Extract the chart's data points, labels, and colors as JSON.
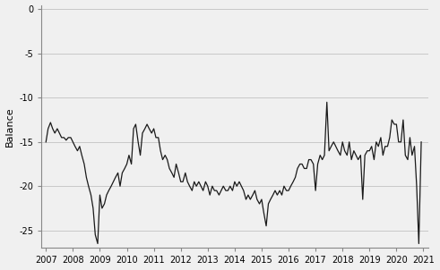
{
  "title": "",
  "ylabel": "Balance",
  "xlim_start": 2006.83,
  "xlim_end": 2021.17,
  "ylim": [
    -27.0,
    0.5
  ],
  "yticks": [
    0,
    -5,
    -10,
    -15,
    -20,
    -25
  ],
  "xticks": [
    2007,
    2008,
    2009,
    2010,
    2011,
    2012,
    2013,
    2014,
    2015,
    2016,
    2017,
    2018,
    2019,
    2020,
    2021
  ],
  "line_color": "#1a1a1a",
  "background_color": "#f0f0f0",
  "grid_color": "#c8c8c8",
  "series": [
    [
      2007.0,
      -15.0
    ],
    [
      2007.08,
      -13.5
    ],
    [
      2007.17,
      -12.8
    ],
    [
      2007.25,
      -13.5
    ],
    [
      2007.33,
      -14.0
    ],
    [
      2007.42,
      -13.5
    ],
    [
      2007.5,
      -14.0
    ],
    [
      2007.58,
      -14.5
    ],
    [
      2007.67,
      -14.5
    ],
    [
      2007.75,
      -14.8
    ],
    [
      2007.83,
      -14.5
    ],
    [
      2007.92,
      -14.5
    ],
    [
      2008.0,
      -15.0
    ],
    [
      2008.08,
      -15.5
    ],
    [
      2008.17,
      -16.0
    ],
    [
      2008.25,
      -15.5
    ],
    [
      2008.33,
      -16.5
    ],
    [
      2008.42,
      -17.5
    ],
    [
      2008.5,
      -19.0
    ],
    [
      2008.58,
      -20.0
    ],
    [
      2008.67,
      -21.0
    ],
    [
      2008.75,
      -22.5
    ],
    [
      2008.83,
      -25.5
    ],
    [
      2008.92,
      -26.5
    ],
    [
      2009.0,
      -21.0
    ],
    [
      2009.08,
      -22.5
    ],
    [
      2009.17,
      -22.0
    ],
    [
      2009.25,
      -21.0
    ],
    [
      2009.33,
      -20.5
    ],
    [
      2009.42,
      -20.0
    ],
    [
      2009.5,
      -19.5
    ],
    [
      2009.58,
      -19.0
    ],
    [
      2009.67,
      -18.5
    ],
    [
      2009.75,
      -20.0
    ],
    [
      2009.83,
      -18.5
    ],
    [
      2009.92,
      -18.0
    ],
    [
      2010.0,
      -17.5
    ],
    [
      2010.08,
      -16.5
    ],
    [
      2010.17,
      -17.5
    ],
    [
      2010.25,
      -13.5
    ],
    [
      2010.33,
      -13.0
    ],
    [
      2010.42,
      -15.0
    ],
    [
      2010.5,
      -16.5
    ],
    [
      2010.58,
      -14.0
    ],
    [
      2010.67,
      -13.5
    ],
    [
      2010.75,
      -13.0
    ],
    [
      2010.83,
      -13.5
    ],
    [
      2010.92,
      -14.0
    ],
    [
      2011.0,
      -13.5
    ],
    [
      2011.08,
      -14.5
    ],
    [
      2011.17,
      -14.5
    ],
    [
      2011.25,
      -16.0
    ],
    [
      2011.33,
      -17.0
    ],
    [
      2011.42,
      -16.5
    ],
    [
      2011.5,
      -17.0
    ],
    [
      2011.58,
      -18.0
    ],
    [
      2011.67,
      -18.5
    ],
    [
      2011.75,
      -19.0
    ],
    [
      2011.83,
      -17.5
    ],
    [
      2011.92,
      -18.5
    ],
    [
      2012.0,
      -19.5
    ],
    [
      2012.08,
      -19.5
    ],
    [
      2012.17,
      -18.5
    ],
    [
      2012.25,
      -19.5
    ],
    [
      2012.33,
      -20.0
    ],
    [
      2012.42,
      -20.5
    ],
    [
      2012.5,
      -19.5
    ],
    [
      2012.58,
      -20.0
    ],
    [
      2012.67,
      -19.5
    ],
    [
      2012.75,
      -20.0
    ],
    [
      2012.83,
      -20.5
    ],
    [
      2012.92,
      -19.5
    ],
    [
      2013.0,
      -20.0
    ],
    [
      2013.08,
      -21.0
    ],
    [
      2013.17,
      -20.0
    ],
    [
      2013.25,
      -20.5
    ],
    [
      2013.33,
      -20.5
    ],
    [
      2013.42,
      -21.0
    ],
    [
      2013.5,
      -20.5
    ],
    [
      2013.58,
      -20.0
    ],
    [
      2013.67,
      -20.5
    ],
    [
      2013.75,
      -20.5
    ],
    [
      2013.83,
      -20.0
    ],
    [
      2013.92,
      -20.5
    ],
    [
      2014.0,
      -19.5
    ],
    [
      2014.08,
      -20.0
    ],
    [
      2014.17,
      -19.5
    ],
    [
      2014.25,
      -20.0
    ],
    [
      2014.33,
      -20.5
    ],
    [
      2014.42,
      -21.5
    ],
    [
      2014.5,
      -21.0
    ],
    [
      2014.58,
      -21.5
    ],
    [
      2014.67,
      -21.0
    ],
    [
      2014.75,
      -20.5
    ],
    [
      2014.83,
      -21.5
    ],
    [
      2014.92,
      -22.0
    ],
    [
      2015.0,
      -21.5
    ],
    [
      2015.08,
      -23.0
    ],
    [
      2015.17,
      -24.5
    ],
    [
      2015.25,
      -22.0
    ],
    [
      2015.33,
      -21.5
    ],
    [
      2015.42,
      -21.0
    ],
    [
      2015.5,
      -20.5
    ],
    [
      2015.58,
      -21.0
    ],
    [
      2015.67,
      -20.5
    ],
    [
      2015.75,
      -21.0
    ],
    [
      2015.83,
      -20.0
    ],
    [
      2015.92,
      -20.5
    ],
    [
      2016.0,
      -20.5
    ],
    [
      2016.08,
      -20.0
    ],
    [
      2016.17,
      -19.5
    ],
    [
      2016.25,
      -19.0
    ],
    [
      2016.33,
      -18.0
    ],
    [
      2016.42,
      -17.5
    ],
    [
      2016.5,
      -17.5
    ],
    [
      2016.58,
      -18.0
    ],
    [
      2016.67,
      -18.0
    ],
    [
      2016.75,
      -17.0
    ],
    [
      2016.83,
      -17.0
    ],
    [
      2016.92,
      -17.5
    ],
    [
      2017.0,
      -20.5
    ],
    [
      2017.08,
      -17.5
    ],
    [
      2017.17,
      -16.5
    ],
    [
      2017.25,
      -17.0
    ],
    [
      2017.33,
      -16.5
    ],
    [
      2017.42,
      -10.5
    ],
    [
      2017.5,
      -16.0
    ],
    [
      2017.58,
      -15.5
    ],
    [
      2017.67,
      -15.0
    ],
    [
      2017.75,
      -15.5
    ],
    [
      2017.83,
      -16.0
    ],
    [
      2017.92,
      -16.5
    ],
    [
      2018.0,
      -15.0
    ],
    [
      2018.08,
      -16.0
    ],
    [
      2018.17,
      -16.5
    ],
    [
      2018.25,
      -15.0
    ],
    [
      2018.33,
      -17.0
    ],
    [
      2018.42,
      -16.0
    ],
    [
      2018.5,
      -16.5
    ],
    [
      2018.58,
      -17.0
    ],
    [
      2018.67,
      -16.5
    ],
    [
      2018.75,
      -21.5
    ],
    [
      2018.83,
      -16.5
    ],
    [
      2018.92,
      -16.0
    ],
    [
      2019.0,
      -16.0
    ],
    [
      2019.08,
      -15.5
    ],
    [
      2019.17,
      -17.0
    ],
    [
      2019.25,
      -15.0
    ],
    [
      2019.33,
      -15.5
    ],
    [
      2019.42,
      -14.5
    ],
    [
      2019.5,
      -16.5
    ],
    [
      2019.58,
      -15.5
    ],
    [
      2019.67,
      -15.5
    ],
    [
      2019.75,
      -14.5
    ],
    [
      2019.83,
      -12.5
    ],
    [
      2019.92,
      -13.0
    ],
    [
      2020.0,
      -13.0
    ],
    [
      2020.08,
      -15.0
    ],
    [
      2020.17,
      -15.0
    ],
    [
      2020.25,
      -12.5
    ],
    [
      2020.33,
      -16.5
    ],
    [
      2020.42,
      -17.0
    ],
    [
      2020.5,
      -14.5
    ],
    [
      2020.58,
      -16.5
    ],
    [
      2020.67,
      -15.5
    ],
    [
      2020.75,
      -20.0
    ],
    [
      2020.83,
      -26.5
    ],
    [
      2020.92,
      -15.0
    ]
  ]
}
